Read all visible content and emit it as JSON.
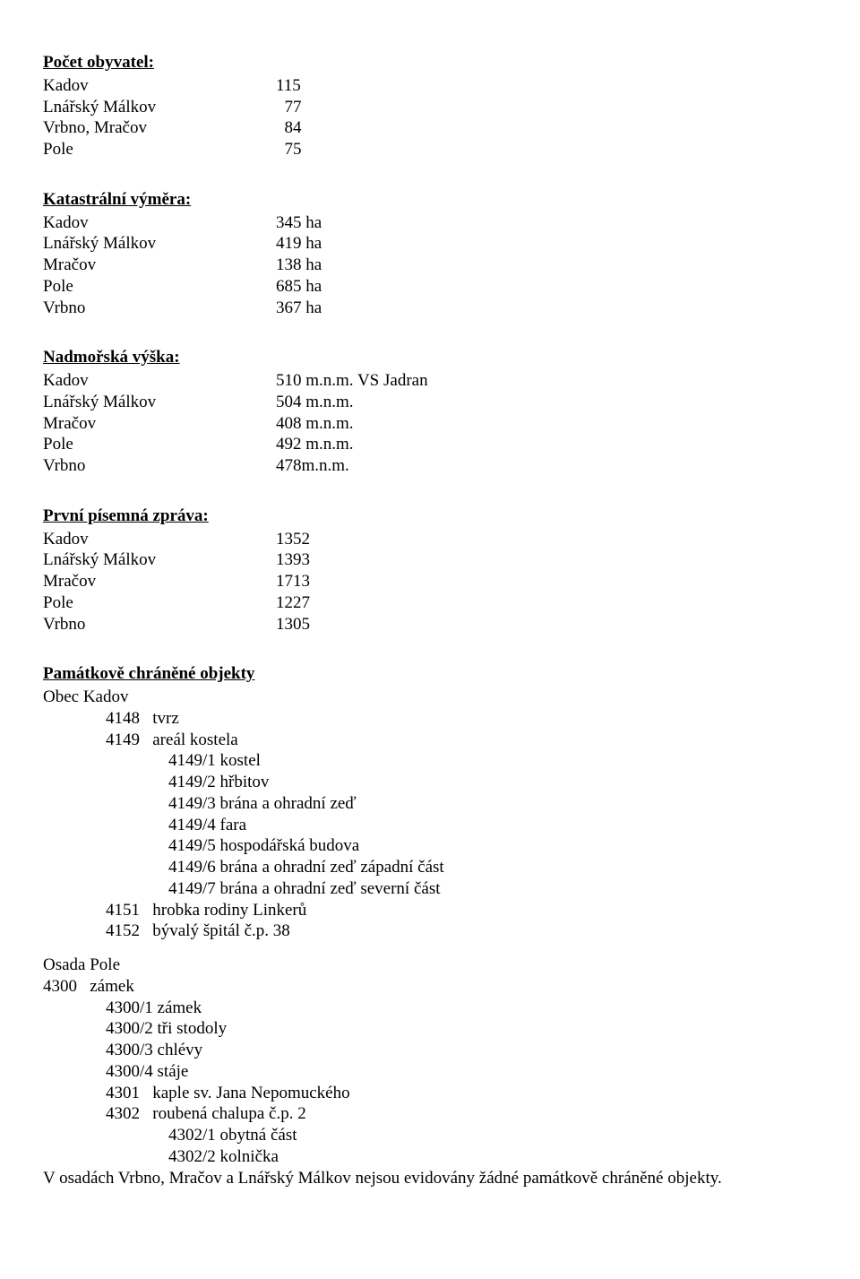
{
  "headers": {
    "population": "Počet obyvatel:",
    "area": "Katastrální výměra:",
    "altitude": "Nadmořská výška:",
    "first_record": "První písemná zpráva:",
    "protected": "Památkově chráněné objekty"
  },
  "population": [
    {
      "label": "Kadov",
      "value": "115"
    },
    {
      "label": "Lnářský Málkov",
      "value": "  77"
    },
    {
      "label": "Vrbno, Mračov",
      "value": "  84"
    },
    {
      "label": "Pole",
      "value": "  75"
    }
  ],
  "area": [
    {
      "label": "Kadov",
      "value": "345 ha"
    },
    {
      "label": "Lnářský Málkov",
      "value": "419 ha"
    },
    {
      "label": "Mračov",
      "value": "138 ha"
    },
    {
      "label": "Pole",
      "value": "685 ha"
    },
    {
      "label": "Vrbno",
      "value": "367 ha"
    }
  ],
  "altitude": [
    {
      "label": "Kadov",
      "value": "510 m.n.m. VS Jadran"
    },
    {
      "label": "Lnářský Málkov",
      "value": "504 m.n.m."
    },
    {
      "label": "Mračov",
      "value": "408 m.n.m."
    },
    {
      "label": "Pole",
      "value": "492 m.n.m."
    },
    {
      "label": "Vrbno",
      "value": "478m.n.m."
    }
  ],
  "first_record": [
    {
      "label": "Kadov",
      "value": "1352"
    },
    {
      "label": "Lnářský Málkov",
      "value": "1393"
    },
    {
      "label": "Mračov",
      "value": "1713"
    },
    {
      "label": "Pole",
      "value": "1227"
    },
    {
      "label": "Vrbno",
      "value": "1305"
    }
  ],
  "protected": {
    "obec_label": "Obec Kadov",
    "obec_items": {
      "a": "4148   tvrz",
      "b": "4149   areál kostela",
      "b1": "4149/1 kostel",
      "b2": "4149/2 hřbitov",
      "b3": "4149/3 brána a ohradní zeď",
      "b4": "4149/4 fara",
      "b5": "4149/5 hospodářská budova",
      "b6": "4149/6 brána a ohradní zeď západní část",
      "b7": "4149/7 brána a ohradní zeď severní část",
      "c": "4151   hrobka rodiny Linkerů",
      "d": "4152   bývalý špitál č.p. 38"
    },
    "osada_label": "Osada Pole",
    "osada_items": {
      "a": "4300   zámek",
      "a1": "4300/1 zámek",
      "a2": "4300/2 tři stodoly",
      "a3": "4300/3 chlévy",
      "a4": "4300/4 stáje",
      "b": "4301   kaple sv. Jana Nepomuckého",
      "c": "4302   roubená chalupa č.p. 2",
      "c1": "4302/1 obytná část",
      "c2": "4302/2 kolnička"
    },
    "footer": "V osadách Vrbno, Mračov a Lnářský Málkov nejsou evidovány žádné památkově chráněné objekty."
  }
}
